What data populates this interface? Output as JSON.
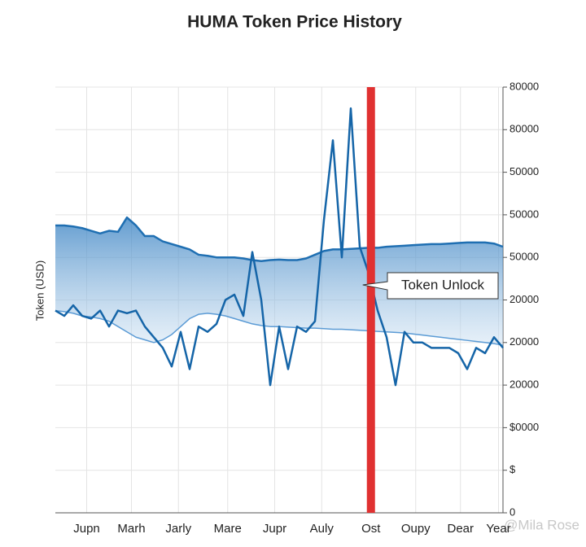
{
  "chart_data": {
    "type": "line",
    "title": "HUMA Token Price History",
    "y_label": "Token (USD)",
    "watermark": "@Mila Rose",
    "xlim": [
      0,
      100
    ],
    "xticks": [
      {
        "value": 7,
        "label": "Jupn"
      },
      {
        "value": 17,
        "label": "Marh"
      },
      {
        "value": 27.5,
        "label": "Jarly"
      },
      {
        "value": 38.5,
        "label": "Mare"
      },
      {
        "value": 49,
        "label": "Jupr"
      },
      {
        "value": 59.5,
        "label": "Auly"
      },
      {
        "value": 70.5,
        "label": "Ost"
      },
      {
        "value": 80.5,
        "label": "Oupy"
      },
      {
        "value": 90.5,
        "label": "Dear"
      },
      {
        "value": 99,
        "label": "Year"
      }
    ],
    "ylim": [
      0,
      80000
    ],
    "yticks": [
      0,
      {
        "value": 8000,
        "label": "$"
      },
      {
        "value": 16000,
        "label": "$0000"
      },
      {
        "value": 24000,
        "label": "20000"
      },
      {
        "value": 32000,
        "label": "20000"
      },
      {
        "value": 40000,
        "label": "20000"
      },
      {
        "value": 48000,
        "label": "50000"
      },
      {
        "value": 56000,
        "label": "50000"
      },
      {
        "value": 64000,
        "label": "50000"
      },
      {
        "value": 72000,
        "label": "80000"
      },
      80000
    ],
    "grid": true,
    "x": [
      0,
      2,
      4,
      6,
      8,
      10,
      12,
      14,
      16,
      18,
      20,
      22,
      24,
      26,
      28,
      30,
      32,
      34,
      36,
      38,
      40,
      42,
      44,
      46,
      48,
      50,
      52,
      54,
      56,
      58,
      60,
      62,
      64,
      66,
      68,
      70,
      72,
      74,
      76,
      78,
      80,
      82,
      84,
      86,
      88,
      90,
      92,
      94,
      96,
      98,
      100
    ],
    "series": [
      {
        "color": "#1f6fb2",
        "role": "band-upper",
        "values": [
          54000,
          54000,
          53800,
          53500,
          53000,
          52500,
          53000,
          52800,
          55500,
          54000,
          52000,
          52000,
          51000,
          50500,
          50000,
          49500,
          48500,
          48300,
          48000,
          48000,
          48000,
          47800,
          47500,
          47300,
          47500,
          47600,
          47500,
          47500,
          47800,
          48500,
          49200,
          49500,
          49500,
          49600,
          49700,
          49800,
          49800,
          50000,
          50100,
          50200,
          50300,
          50400,
          50500,
          50500,
          50600,
          50700,
          50800,
          50800,
          50800,
          50600,
          50000
        ]
      },
      {
        "color": "#5b9bd5",
        "role": "band-lower",
        "values": [
          38000,
          37800,
          37500,
          37000,
          36800,
          36500,
          36000,
          35000,
          34000,
          33000,
          32500,
          32000,
          32500,
          33500,
          35000,
          36500,
          37300,
          37500,
          37300,
          37000,
          36500,
          36000,
          35500,
          35200,
          35000,
          35000,
          34900,
          34800,
          34700,
          34700,
          34600,
          34500,
          34500,
          34400,
          34300,
          34200,
          34100,
          34000,
          33900,
          33800,
          33600,
          33400,
          33200,
          33000,
          32800,
          32600,
          32400,
          32200,
          32000,
          31800,
          31500
        ]
      },
      {
        "color": "#1565a8",
        "role": "price",
        "values": [
          38000,
          37000,
          39000,
          37000,
          36500,
          38000,
          35000,
          38000,
          37500,
          38000,
          35000,
          33000,
          31000,
          27500,
          34000,
          27000,
          35000,
          34000,
          35500,
          40000,
          41000,
          37000,
          49000,
          40000,
          24000,
          35000,
          27000,
          35000,
          34000,
          36000,
          55000,
          70000,
          48000,
          76000,
          50000,
          45000,
          38000,
          33000,
          24000,
          34000,
          32000,
          32000,
          31000,
          31000,
          31000,
          30000,
          27000,
          31000,
          30000,
          33000,
          31000
        ]
      }
    ],
    "annotations": [
      {
        "x": 70.5,
        "label": "Token Unlock",
        "color": "#e03131"
      }
    ]
  }
}
